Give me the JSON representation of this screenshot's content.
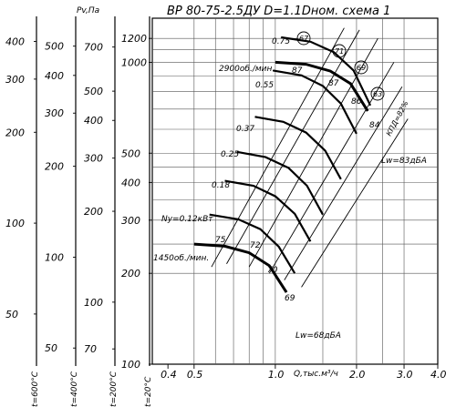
{
  "chart_data": {
    "type": "line",
    "title": "ВР 80-75-2.5ДУ D=1.1Dном. схема 1",
    "xlabel": "Q,тыс.м³/ч",
    "ylabel": "Pv,Па",
    "x_scale": "log",
    "y_scale": "log",
    "xlim": [
      0.35,
      4.0
    ],
    "ylim": [
      100,
      1400
    ],
    "x_ticks": [
      {
        "v": 0.4,
        "label": "0.4"
      },
      {
        "v": 0.5,
        "label": "0.5"
      },
      {
        "v": 1.0,
        "label": "1.0"
      },
      {
        "v": 2.0,
        "label": "2.0"
      },
      {
        "v": 3.0,
        "label": "3.0"
      },
      {
        "v": 4.0,
        "label": "4.0"
      }
    ],
    "x_grid": [
      0.5,
      0.6,
      0.7,
      0.8,
      0.9,
      1.0,
      1.5,
      2.0,
      2.5,
      3.0
    ],
    "y_ticks": [
      {
        "v": 100,
        "label": "100"
      },
      {
        "v": 200,
        "label": "200"
      },
      {
        "v": 300,
        "label": "300"
      },
      {
        "v": 400,
        "label": "400"
      },
      {
        "v": 500,
        "label": "500"
      },
      {
        "v": 1000,
        "label": "1000"
      },
      {
        "v": 1200,
        "label": "1200"
      }
    ],
    "y_grid": [
      200,
      250,
      300,
      350,
      400,
      450,
      500,
      600,
      700,
      800,
      900,
      1000,
      1100,
      1200
    ],
    "side_scales": [
      {
        "name": "t=600°C",
        "axis_label": "t=600°C",
        "ticks": [
          {
            "v": 50,
            "label": "50"
          },
          {
            "v": 100,
            "label": "100"
          },
          {
            "v": 200,
            "label": "200"
          },
          {
            "v": 300,
            "label": "300"
          },
          {
            "v": 400,
            "label": "400"
          }
        ],
        "factor": 0.341
      },
      {
        "name": "t=400°C",
        "axis_label": "t=400°C",
        "ticks": [
          {
            "v": 50,
            "label": "50"
          },
          {
            "v": 100,
            "label": "100"
          },
          {
            "v": 200,
            "label": "200"
          },
          {
            "v": 300,
            "label": "300"
          },
          {
            "v": 400,
            "label": "400"
          },
          {
            "v": 500,
            "label": "500"
          }
        ],
        "factor": 0.442
      },
      {
        "name": "t=200°C",
        "axis_label": "t=200°C",
        "ticks": [
          {
            "v": 70,
            "label": "70"
          },
          {
            "v": 100,
            "label": "100"
          },
          {
            "v": 200,
            "label": "200"
          },
          {
            "v": 300,
            "label": "300"
          },
          {
            "v": 400,
            "label": "400"
          },
          {
            "v": 500,
            "label": "500"
          },
          {
            "v": 700,
            "label": "700"
          }
        ],
        "factor": 0.623
      },
      {
        "name": "t=20°C",
        "axis_label": "t=20°C",
        "ticks": [],
        "factor": 1.0
      }
    ],
    "series": [
      {
        "name": "2900об./мин.",
        "speed_rpm": 2900,
        "thick": true,
        "x": [
          1.0,
          1.3,
          1.6,
          1.9,
          2.2
        ],
        "y": [
          1000,
          985,
          935,
          850,
          690
        ]
      },
      {
        "name": "1450об./мин.",
        "speed_rpm": 1450,
        "thick": true,
        "x": [
          0.5,
          0.65,
          0.8,
          0.95,
          1.1
        ],
        "y": [
          250,
          246,
          234,
          212,
          173
        ]
      }
    ],
    "power_curves": [
      {
        "label": "0.75",
        "Q": [
          1.05,
          1.35,
          1.65,
          1.95,
          2.25
        ],
        "P": [
          1210,
          1170,
          1080,
          940,
          720
        ]
      },
      {
        "label": "0.55",
        "Q": [
          0.98,
          1.25,
          1.5,
          1.75,
          2.0
        ],
        "P": [
          940,
          905,
          835,
          730,
          580
        ]
      },
      {
        "label": "0.37",
        "Q": [
          0.84,
          1.07,
          1.3,
          1.53,
          1.75
        ],
        "P": [
          660,
          635,
          585,
          510,
          410
        ]
      },
      {
        "label": "0.25",
        "Q": [
          0.72,
          0.92,
          1.12,
          1.31,
          1.5
        ],
        "P": [
          505,
          485,
          447,
          390,
          313
        ]
      },
      {
        "label": "0.18",
        "Q": [
          0.65,
          0.83,
          1.0,
          1.18,
          1.35
        ],
        "P": [
          405,
          390,
          360,
          315,
          255
        ]
      },
      {
        "label": "Ny=0.12кВт",
        "Q": [
          0.57,
          0.73,
          0.88,
          1.03,
          1.18
        ],
        "P": [
          313,
          302,
          280,
          245,
          200
        ]
      }
    ],
    "annotations": {
      "speed_high": "2900об./мин.",
      "speed_low": "1450об./мин.",
      "lw_high": "Lw=83дБА",
      "lw_low": "Lw=68дБА",
      "kpd": "КПД=82%",
      "eff_high": [
        "87",
        "87",
        "86",
        "84"
      ],
      "eff_high_circled": [
        "67",
        "71",
        "69",
        "63"
      ],
      "eff_low": [
        "75",
        "72",
        "70",
        "69"
      ],
      "eff_low_circled": [
        "75",
        "72",
        "70",
        "69"
      ],
      "power_labels": [
        "0.75",
        "0.55",
        "0.37",
        "0.25",
        "0.18",
        "Ny=0.12кВт"
      ]
    }
  }
}
